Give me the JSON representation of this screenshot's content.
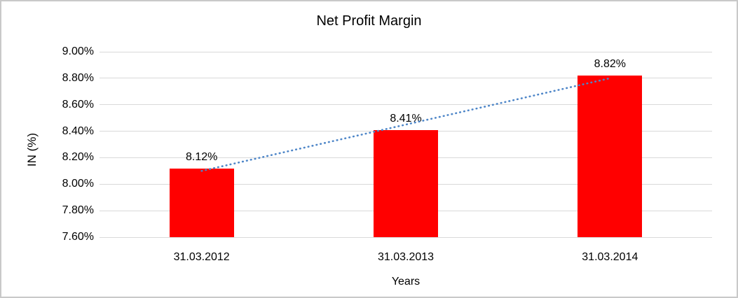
{
  "window": {
    "background": "#ffffff",
    "border_color": "#c9c9c9"
  },
  "chart_data": {
    "type": "bar",
    "title": "Net Profit Margin",
    "categories": [
      "31.03.2012",
      "31.03.2013",
      "31.03.2014"
    ],
    "series": [
      {
        "name": "Net Profit Margin",
        "values": [
          8.12,
          8.41,
          8.82
        ]
      }
    ],
    "value_labels": [
      "8.12%",
      "8.41%",
      "8.82%"
    ],
    "xlabel": "Years",
    "ylabel": "IN (%)",
    "ylim": [
      7.6,
      9.0
    ],
    "yticks": [
      {
        "label": "9.00%",
        "value": 9.0
      },
      {
        "label": "8.80%",
        "value": 8.8
      },
      {
        "label": "8.60%",
        "value": 8.6
      },
      {
        "label": "8.40%",
        "value": 8.4
      },
      {
        "label": "8.20%",
        "value": 8.2
      },
      {
        "label": "8.00%",
        "value": 8.0
      },
      {
        "label": "7.80%",
        "value": 7.8
      },
      {
        "label": "7.60%",
        "value": 7.6
      }
    ],
    "grid": true,
    "gridline_color": "#d9d9d9",
    "bar_color": "#ff0000",
    "text_color": "#000000",
    "legend": "none",
    "trendline": {
      "type": "linear",
      "style": "dotted",
      "color": "#4e86c8"
    }
  }
}
